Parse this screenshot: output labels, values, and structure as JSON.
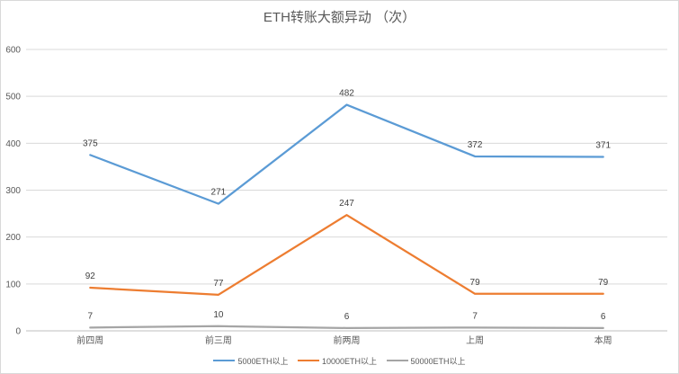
{
  "chart_data": {
    "type": "line",
    "title": "ETH转账大额异动 （次）",
    "categories": [
      "前四周",
      "前三周",
      "前两周",
      "上周",
      "本周"
    ],
    "ylim": [
      0,
      600
    ],
    "yticks": [
      0,
      100,
      200,
      300,
      400,
      500,
      600
    ],
    "grid": true,
    "legend_position": "bottom",
    "series": [
      {
        "name": "5000ETH以上",
        "color": "#5b9bd5",
        "values": [
          375,
          271,
          482,
          372,
          371
        ]
      },
      {
        "name": "10000ETH以上",
        "color": "#ed7d31",
        "values": [
          92,
          77,
          247,
          79,
          79
        ]
      },
      {
        "name": "50000ETH以上",
        "color": "#a5a5a5",
        "values": [
          7,
          10,
          6,
          7,
          6
        ]
      }
    ]
  }
}
